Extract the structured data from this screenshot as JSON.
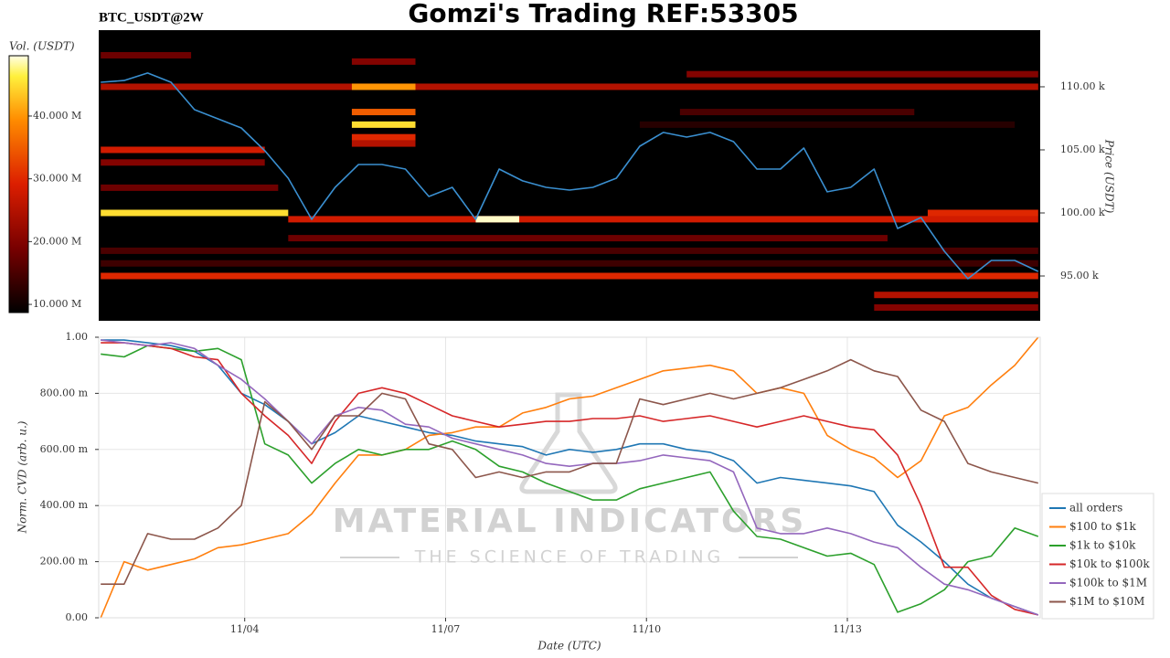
{
  "chart_data": [
    {
      "type": "heatmap",
      "title": "Gomzi's Trading REF:53305",
      "subtitle": "BTC_USDT@2W",
      "ylabel": "Price (USDT)",
      "colorbar_label": "Vol. (USDT)",
      "xlim": [
        1.82,
        15.88
      ],
      "ylim": [
        91450,
        114490
      ],
      "yticks": [
        {
          "value": 95000,
          "label": "95.00 k"
        },
        {
          "value": 100000,
          "label": "100.00 k"
        },
        {
          "value": 105000,
          "label": "105.00 k"
        },
        {
          "value": 110000,
          "label": "110.00 k"
        }
      ],
      "clim": [
        8700000,
        49600000
      ],
      "cticks": [
        {
          "value": 10000000,
          "label": "10.000 M"
        },
        {
          "value": 20000000,
          "label": "20.000 M"
        },
        {
          "value": 30000000,
          "label": "30.000 M"
        },
        {
          "value": 40000000,
          "label": "40.000 M"
        }
      ],
      "bands": [
        {
          "price": 110000,
          "start": 1.85,
          "end": 15.85,
          "volume": 25000000
        },
        {
          "price": 111000,
          "start": 10.6,
          "end": 15.85,
          "volume": 20000000
        },
        {
          "price": 112500,
          "start": 1.85,
          "end": 3.2,
          "volume": 18000000
        },
        {
          "price": 100000,
          "start": 1.85,
          "end": 4.65,
          "volume": 45000000
        },
        {
          "price": 99500,
          "start": 4.65,
          "end": 15.85,
          "volume": 28000000
        },
        {
          "price": 95000,
          "start": 1.85,
          "end": 15.85,
          "volume": 30000000
        },
        {
          "price": 105000,
          "start": 1.85,
          "end": 4.3,
          "volume": 28000000
        },
        {
          "price": 104000,
          "start": 1.85,
          "end": 4.3,
          "volume": 20000000
        },
        {
          "price": 102000,
          "start": 1.85,
          "end": 4.5,
          "volume": 18000000
        },
        {
          "price": 112000,
          "start": 5.6,
          "end": 6.55,
          "volume": 20000000
        },
        {
          "price": 110000,
          "start": 5.6,
          "end": 6.55,
          "volume": 40000000
        },
        {
          "price": 108000,
          "start": 5.6,
          "end": 6.55,
          "volume": 35000000
        },
        {
          "price": 107000,
          "start": 5.6,
          "end": 6.55,
          "volume": 45000000
        },
        {
          "price": 106000,
          "start": 5.6,
          "end": 6.55,
          "volume": 30000000
        },
        {
          "price": 105500,
          "start": 5.6,
          "end": 6.55,
          "volume": 25000000
        },
        {
          "price": 100000,
          "start": 14.2,
          "end": 15.85,
          "volume": 30000000
        },
        {
          "price": 98000,
          "start": 4.65,
          "end": 13.6,
          "volume": 18000000
        },
        {
          "price": 97000,
          "start": 1.85,
          "end": 15.85,
          "volume": 15000000
        },
        {
          "price": 96000,
          "start": 1.85,
          "end": 15.85,
          "volume": 14000000
        },
        {
          "price": 93500,
          "start": 13.4,
          "end": 15.85,
          "volume": 25000000
        },
        {
          "price": 92500,
          "start": 13.4,
          "end": 15.85,
          "volume": 20000000
        },
        {
          "price": 108000,
          "start": 10.5,
          "end": 14.0,
          "volume": 15000000
        },
        {
          "price": 107000,
          "start": 9.9,
          "end": 15.5,
          "volume": 12000000
        },
        {
          "price": 99500,
          "start": 7.45,
          "end": 8.1,
          "volume": 49000000
        }
      ],
      "x": [
        1.85,
        2.2,
        2.55,
        2.9,
        3.25,
        3.6,
        3.95,
        4.3,
        4.65,
        5.0,
        5.35,
        5.7,
        6.05,
        6.4,
        6.75,
        7.1,
        7.45,
        7.8,
        8.15,
        8.5,
        8.85,
        9.2,
        9.55,
        9.9,
        10.25,
        10.6,
        10.95,
        11.3,
        11.65,
        12.0,
        12.35,
        12.7,
        13.05,
        13.4,
        13.75,
        14.1,
        14.45,
        14.8,
        15.15,
        15.5,
        15.85
      ],
      "price": {
        "color": "#3a8fd0",
        "values": [
          110360,
          110500,
          111090,
          110360,
          108190,
          107460,
          106740,
          104930,
          102750,
          99490,
          102030,
          103840,
          103840,
          103480,
          101300,
          102030,
          99490,
          103480,
          102540,
          102030,
          101810,
          102030,
          102750,
          105290,
          106380,
          106010,
          106380,
          105650,
          103480,
          103480,
          105140,
          101670,
          102030,
          103480,
          98770,
          99640,
          96960,
          94780,
          96230,
          96230,
          95360
        ]
      }
    },
    {
      "type": "line",
      "xlabel": "Date (UTC)",
      "ylabel": "Norm. CVD (arb. u.)",
      "watermark": {
        "title": "MATERIAL INDICATORS",
        "subtitle": "THE SCIENCE OF TRADING"
      },
      "grid": true,
      "legend": "right",
      "xlim": [
        1.82,
        15.88
      ],
      "xticks": [
        {
          "value": 4,
          "label": "11/04"
        },
        {
          "value": 7,
          "label": "11/07"
        },
        {
          "value": 10,
          "label": "11/10"
        },
        {
          "value": 13,
          "label": "11/13"
        }
      ],
      "ylim": [
        0,
        1
      ],
      "yticks": [
        {
          "value": 0,
          "label": "0.00"
        },
        {
          "value": 0.2,
          "label": "200.00 m"
        },
        {
          "value": 0.4,
          "label": "400.00 m"
        },
        {
          "value": 0.6,
          "label": "600.00 m"
        },
        {
          "value": 0.8,
          "label": "800.00 m"
        },
        {
          "value": 1,
          "label": "1.00"
        }
      ],
      "x": [
        1.85,
        2.2,
        2.55,
        2.9,
        3.25,
        3.6,
        3.95,
        4.3,
        4.65,
        5.0,
        5.35,
        5.7,
        6.05,
        6.4,
        6.75,
        7.1,
        7.45,
        7.8,
        8.15,
        8.5,
        8.85,
        9.2,
        9.55,
        9.9,
        10.25,
        10.6,
        10.95,
        11.3,
        11.65,
        12.0,
        12.35,
        12.7,
        13.05,
        13.4,
        13.75,
        14.1,
        14.45,
        14.8,
        15.15,
        15.5,
        15.85
      ],
      "series": [
        {
          "name": "all orders",
          "color": "#1f77b4",
          "values": [
            0.99,
            0.99,
            0.98,
            0.97,
            0.95,
            0.9,
            0.8,
            0.76,
            0.7,
            0.62,
            0.66,
            0.72,
            0.7,
            0.68,
            0.66,
            0.65,
            0.63,
            0.62,
            0.61,
            0.58,
            0.6,
            0.59,
            0.6,
            0.62,
            0.62,
            0.6,
            0.59,
            0.56,
            0.48,
            0.5,
            0.49,
            0.48,
            0.47,
            0.45,
            0.33,
            0.27,
            0.2,
            0.12,
            0.07,
            0.04,
            0.01
          ]
        },
        {
          "name": "$100 to $1k",
          "color": "#ff7f0e",
          "values": [
            0,
            0.2,
            0.17,
            0.19,
            0.21,
            0.25,
            0.26,
            0.28,
            0.3,
            0.37,
            0.48,
            0.58,
            0.58,
            0.6,
            0.65,
            0.66,
            0.68,
            0.68,
            0.73,
            0.75,
            0.78,
            0.79,
            0.82,
            0.85,
            0.88,
            0.89,
            0.9,
            0.88,
            0.8,
            0.82,
            0.8,
            0.65,
            0.6,
            0.57,
            0.5,
            0.56,
            0.72,
            0.75,
            0.83,
            0.9,
            1
          ]
        },
        {
          "name": "$1k to $10k",
          "color": "#2ca02c",
          "values": [
            0.94,
            0.93,
            0.97,
            0.96,
            0.95,
            0.96,
            0.92,
            0.62,
            0.58,
            0.48,
            0.55,
            0.6,
            0.58,
            0.6,
            0.6,
            0.63,
            0.6,
            0.54,
            0.52,
            0.48,
            0.45,
            0.42,
            0.42,
            0.46,
            0.48,
            0.5,
            0.52,
            0.38,
            0.29,
            0.28,
            0.25,
            0.22,
            0.23,
            0.19,
            0.02,
            0.05,
            0.1,
            0.2,
            0.22,
            0.32,
            0.29
          ]
        },
        {
          "name": "$10k to $100k",
          "color": "#d62728",
          "values": [
            0.98,
            0.98,
            0.97,
            0.96,
            0.93,
            0.92,
            0.8,
            0.72,
            0.65,
            0.55,
            0.7,
            0.8,
            0.82,
            0.8,
            0.76,
            0.72,
            0.7,
            0.68,
            0.69,
            0.7,
            0.7,
            0.71,
            0.71,
            0.72,
            0.7,
            0.71,
            0.72,
            0.7,
            0.68,
            0.7,
            0.72,
            0.7,
            0.68,
            0.67,
            0.58,
            0.4,
            0.18,
            0.18,
            0.08,
            0.03,
            0.01
          ]
        },
        {
          "name": "$100k to $1M",
          "color": "#9467bd",
          "values": [
            0.99,
            0.98,
            0.97,
            0.98,
            0.96,
            0.9,
            0.85,
            0.78,
            0.7,
            0.62,
            0.72,
            0.75,
            0.74,
            0.69,
            0.68,
            0.64,
            0.62,
            0.6,
            0.58,
            0.55,
            0.54,
            0.55,
            0.55,
            0.56,
            0.58,
            0.57,
            0.56,
            0.52,
            0.32,
            0.3,
            0.3,
            0.32,
            0.3,
            0.27,
            0.25,
            0.18,
            0.12,
            0.1,
            0.07,
            0.04,
            0.01
          ]
        },
        {
          "name": "$1M to $10M",
          "color": "#8c564b",
          "values": [
            0.12,
            0.12,
            0.3,
            0.28,
            0.28,
            0.32,
            0.4,
            0.77,
            0.7,
            0.6,
            0.72,
            0.72,
            0.8,
            0.78,
            0.62,
            0.6,
            0.5,
            0.52,
            0.5,
            0.52,
            0.52,
            0.55,
            0.55,
            0.78,
            0.76,
            0.78,
            0.8,
            0.78,
            0.8,
            0.82,
            0.85,
            0.88,
            0.92,
            0.88,
            0.86,
            0.74,
            0.7,
            0.55,
            0.52,
            0.5,
            0.48
          ]
        }
      ]
    }
  ]
}
